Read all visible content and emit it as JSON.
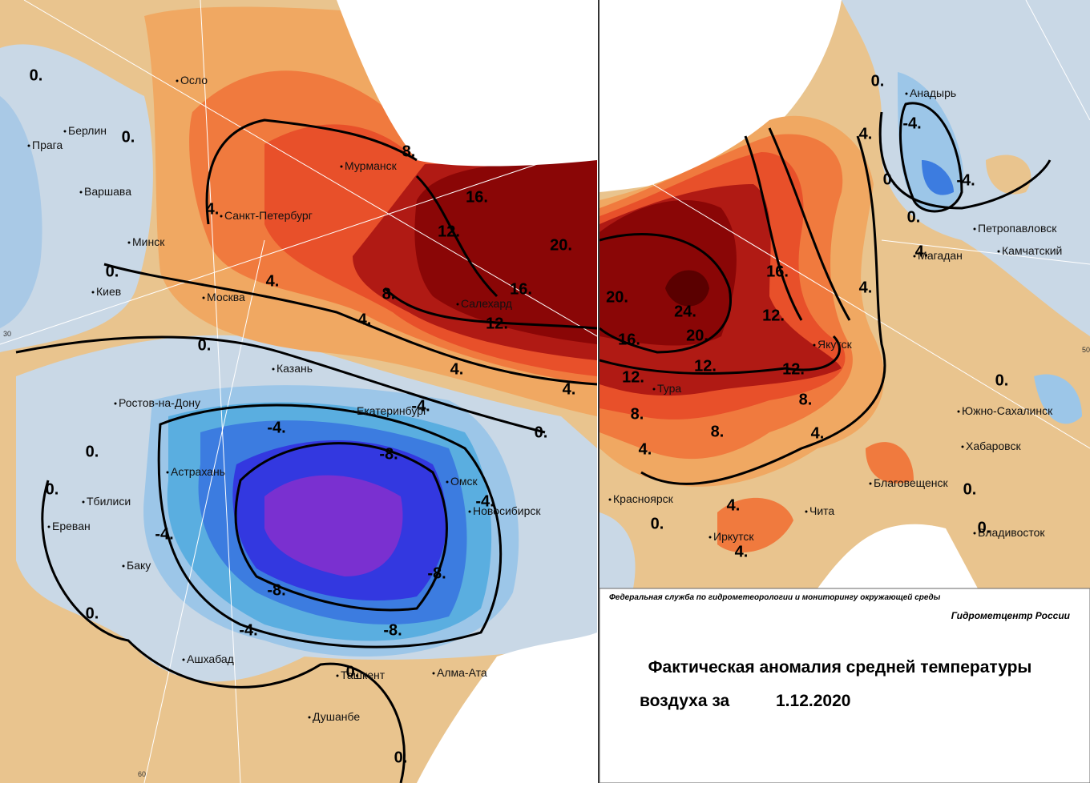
{
  "left_map": {
    "cities": [
      "Осло",
      "Берлин",
      "Прага",
      "Варшава",
      "Минск",
      "Санкт-Петербург",
      "Мурманск",
      "Москва",
      "Киев",
      "Салехард",
      "Казань",
      "Ростов-на-Дону",
      "Екатеринбург",
      "Астрахань",
      "Омск",
      "Новосибирск",
      "Тбилиси",
      "Ереван",
      "Баку",
      "Ашхабад",
      "Ташкент",
      "Алма-Ата",
      "Душанбе"
    ],
    "isolines": [
      "0.",
      "0.",
      "4.",
      "0.",
      "8.",
      "16.",
      "12.",
      "20.",
      "4.",
      "8.",
      "16.",
      "12.",
      "4.",
      "0.",
      "4.",
      "4.",
      "-4.",
      "-4.",
      "0.",
      "-8.",
      "0.",
      "0.",
      "-4.",
      "-4.",
      "-8.",
      "-8.",
      "0.",
      "-4.",
      "-8.",
      "0.",
      "0."
    ],
    "grid_labels": [
      "30",
      "60"
    ]
  },
  "right_map": {
    "cities": [
      "Анадырь",
      "Петропавловск",
      "Камчатский",
      "Магадан",
      "Якутск",
      "Тура",
      "Южно-Сахалинск",
      "Хабаровск",
      "Благовещенск",
      "Красноярск",
      "Чита",
      "Иркутск",
      "Владивосток"
    ],
    "isolines": [
      "0.",
      "-4.",
      "4.",
      "0.",
      "-4.",
      "0.",
      "4.",
      "16.",
      "4.",
      "20.",
      "24.",
      "12.",
      "16.",
      "20.",
      "12.",
      "12.",
      "12.",
      "8.",
      "8.",
      "0.",
      "8.",
      "4.",
      "4.",
      "0.",
      "4.",
      "0.",
      "0.",
      "4."
    ],
    "grid_labels": [
      "50"
    ]
  },
  "footer": {
    "agency": "Федеральная служба по гидрометеорологии и мониторингу окружающей среды",
    "center": "Гидрометцентр России",
    "title_line1": "Фактическая аномалия средней температуры",
    "title_line2": "воздуха за",
    "date": "1.12.2020"
  }
}
